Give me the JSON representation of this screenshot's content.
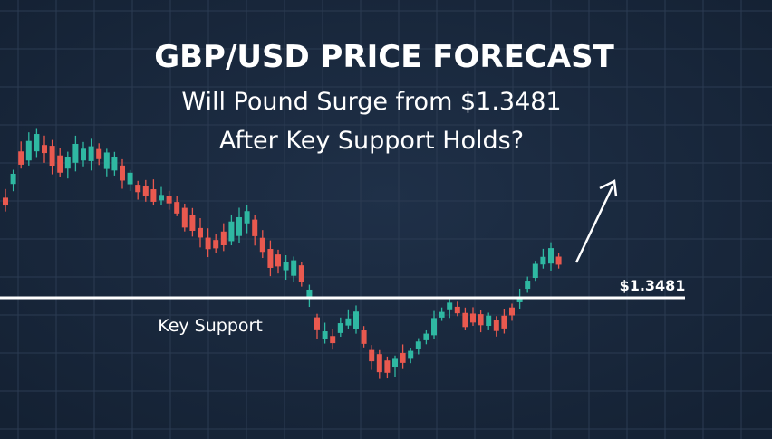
{
  "header": {
    "title": "GBP/USD PRICE FORECAST",
    "subtitle_line1": "Will Pound Surge from $1.3481",
    "subtitle_line2": "After Key Support Holds?"
  },
  "annotations": {
    "support_label": "Key Support",
    "price_label": "$1.3481"
  }
}
